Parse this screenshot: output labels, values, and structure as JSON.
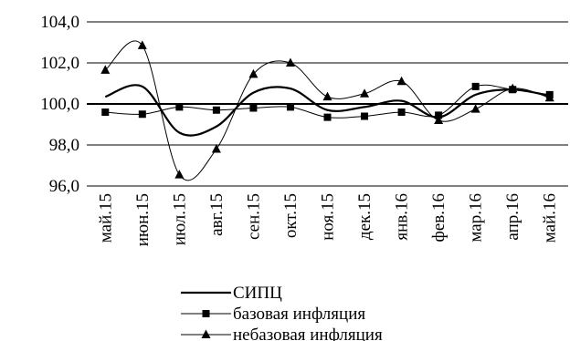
{
  "chart_data": {
    "type": "line",
    "title": "",
    "xlabel": "",
    "ylabel": "",
    "ylim": [
      96.0,
      104.0
    ],
    "yticks": [
      "96,0",
      "98,0",
      "100,0",
      "102,0",
      "104,0"
    ],
    "ytick_values": [
      96,
      98,
      100,
      102,
      104
    ],
    "reference_line": 100,
    "grid": "horizontal",
    "legend_position": "bottom",
    "categories": [
      "май.15",
      "июн.15",
      "июл.15",
      "авг.15",
      "сен.15",
      "окт.15",
      "ноя.15",
      "дек.15",
      "янв.16",
      "фев.16",
      "мар.16",
      "апр.16",
      "май.16"
    ],
    "series": [
      {
        "name": "СИПЦ",
        "marker": "none",
        "values": [
          100.35,
          100.85,
          98.6,
          98.9,
          100.55,
          100.75,
          99.7,
          99.85,
          100.15,
          99.35,
          100.45,
          100.7,
          100.4
        ]
      },
      {
        "name": "базовая инфляция",
        "marker": "square",
        "values": [
          99.6,
          99.5,
          99.85,
          99.7,
          99.8,
          99.85,
          99.35,
          99.4,
          99.6,
          99.45,
          100.85,
          100.7,
          100.45
        ]
      },
      {
        "name": "небазовая инфляция",
        "marker": "triangle",
        "values": [
          101.65,
          102.85,
          96.55,
          97.8,
          101.45,
          102.0,
          100.35,
          100.5,
          101.1,
          99.2,
          99.75,
          100.75,
          100.3
        ]
      }
    ]
  }
}
